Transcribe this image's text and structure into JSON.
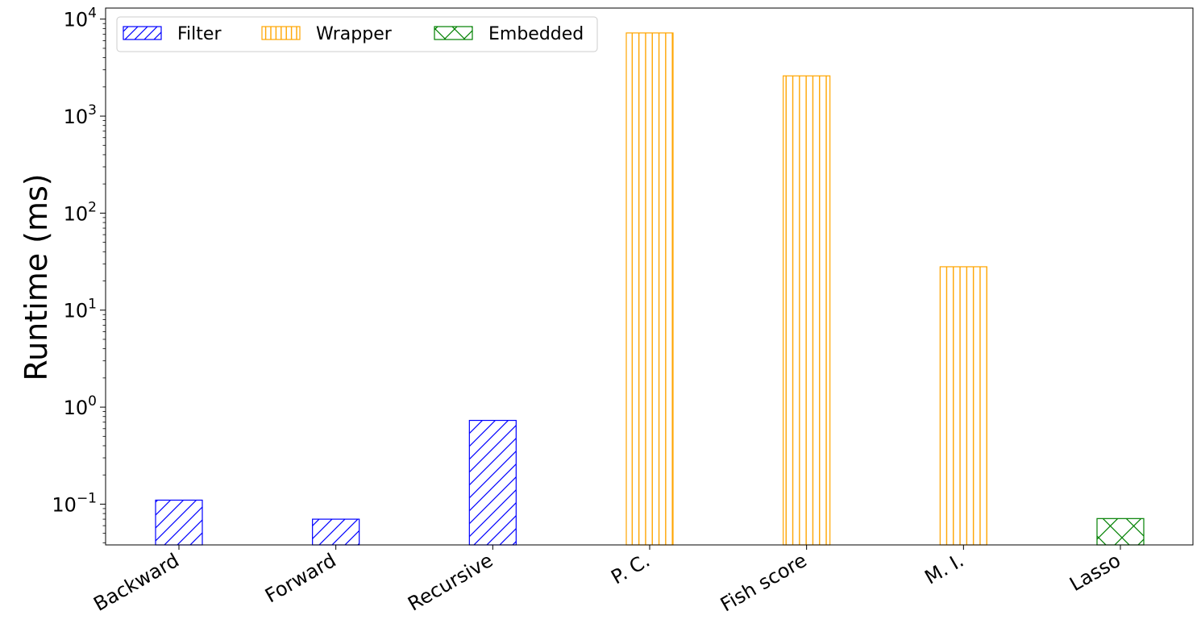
{
  "chart_data": {
    "type": "bar",
    "title": "",
    "xlabel": "",
    "ylabel": "Runtime (ms)",
    "yscale": "log",
    "ylim": [
      0.038,
      13000
    ],
    "y_ticks": [
      {
        "value": 0.1,
        "base": "10",
        "exp": "−1"
      },
      {
        "value": 1,
        "base": "10",
        "exp": "0"
      },
      {
        "value": 10,
        "base": "10",
        "exp": "1"
      },
      {
        "value": 100,
        "base": "10",
        "exp": "2"
      },
      {
        "value": 1000,
        "base": "10",
        "exp": "3"
      },
      {
        "value": 10000,
        "base": "10",
        "exp": "4"
      }
    ],
    "categories": [
      "Backward",
      "Forward",
      "Recursive",
      "P. C.",
      "Fish score",
      "M. I.",
      "Lasso"
    ],
    "values": [
      0.11,
      0.07,
      0.73,
      7200,
      2600,
      28,
      0.071
    ],
    "groups": [
      "Filter",
      "Filter",
      "Filter",
      "Wrapper",
      "Wrapper",
      "Wrapper",
      "Embedded"
    ],
    "grid": false,
    "legend_position": "top-left",
    "legend": [
      {
        "name": "Filter",
        "color": "#0000ff",
        "hatch": "diagonal"
      },
      {
        "name": "Wrapper",
        "color": "#ffa500",
        "hatch": "vertical"
      },
      {
        "name": "Embedded",
        "color": "#008000",
        "hatch": "cross"
      }
    ]
  }
}
